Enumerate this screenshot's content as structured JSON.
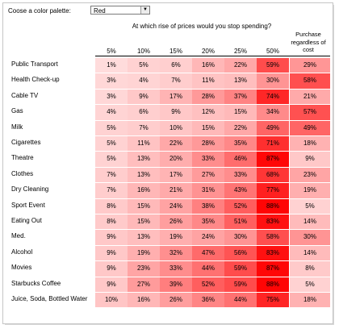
{
  "controls": {
    "palette_label": "Coose a color palette:",
    "palette_value": "Red",
    "palette_arrow": "▼"
  },
  "header": {
    "question": "At which rise of prices would you stop spending?",
    "purchase": "Purchase regardless of cost",
    "columns": [
      "5%",
      "10%",
      "15%",
      "20%",
      "25%",
      "50%"
    ]
  },
  "rows": [
    {
      "label": "Public Transport",
      "values": [
        "1%",
        "5%",
        "6%",
        "16%",
        "22%",
        "59%",
        "29%"
      ]
    },
    {
      "label": "Health Check-up",
      "values": [
        "3%",
        "4%",
        "7%",
        "11%",
        "13%",
        "30%",
        "58%"
      ]
    },
    {
      "label": "Cable TV",
      "values": [
        "3%",
        "9%",
        "17%",
        "28%",
        "37%",
        "74%",
        "21%"
      ]
    },
    {
      "label": "Gas",
      "values": [
        "4%",
        "6%",
        "9%",
        "12%",
        "15%",
        "34%",
        "57%"
      ]
    },
    {
      "label": "Milk",
      "values": [
        "5%",
        "7%",
        "10%",
        "15%",
        "22%",
        "49%",
        "49%"
      ]
    },
    {
      "label": "Cigarettes",
      "values": [
        "5%",
        "11%",
        "22%",
        "28%",
        "35%",
        "71%",
        "18%"
      ]
    },
    {
      "label": "Theatre",
      "values": [
        "5%",
        "13%",
        "20%",
        "33%",
        "46%",
        "87%",
        "9%"
      ]
    },
    {
      "label": "Clothes",
      "values": [
        "7%",
        "13%",
        "17%",
        "27%",
        "33%",
        "68%",
        "23%"
      ]
    },
    {
      "label": "Dry Cleaning",
      "values": [
        "7%",
        "16%",
        "21%",
        "31%",
        "43%",
        "77%",
        "19%"
      ]
    },
    {
      "label": "Sport Event",
      "values": [
        "8%",
        "15%",
        "24%",
        "38%",
        "52%",
        "88%",
        "5%"
      ]
    },
    {
      "label": "Eating Out",
      "values": [
        "8%",
        "15%",
        "26%",
        "35%",
        "51%",
        "83%",
        "14%"
      ]
    },
    {
      "label": "Med.",
      "values": [
        "9%",
        "13%",
        "19%",
        "24%",
        "30%",
        "58%",
        "30%"
      ]
    },
    {
      "label": "Alcohol",
      "values": [
        "9%",
        "19%",
        "32%",
        "47%",
        "56%",
        "83%",
        "14%"
      ]
    },
    {
      "label": "Movies",
      "values": [
        "9%",
        "23%",
        "33%",
        "44%",
        "59%",
        "87%",
        "8%"
      ]
    },
    {
      "label": "Starbucks Coffee",
      "values": [
        "9%",
        "27%",
        "39%",
        "52%",
        "59%",
        "88%",
        "5%"
      ]
    },
    {
      "label": "Juice, Soda, Bottled Water",
      "values": [
        "10%",
        "16%",
        "26%",
        "36%",
        "44%",
        "75%",
        "18%"
      ]
    }
  ],
  "colors": {
    "low": "#ffd9d9",
    "high": "#ff0000"
  }
}
